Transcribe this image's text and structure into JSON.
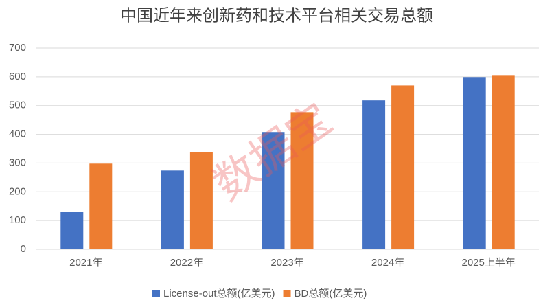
{
  "chart_data": {
    "type": "bar",
    "title": "中国近年来创新药和技术平台相关交易总额",
    "watermark": "数据宝",
    "categories": [
      "2021年",
      "2022年",
      "2023年",
      "2024年",
      "2025上半年"
    ],
    "series": [
      {
        "name": "License-out总额(亿美元)",
        "color": "#4472c4",
        "values": [
          131,
          274,
          408,
          518,
          599
        ]
      },
      {
        "name": "BD总额(亿美元)",
        "color": "#ed7d31",
        "values": [
          298,
          339,
          477,
          570,
          606
        ]
      }
    ],
    "ylim": [
      0,
      700
    ],
    "yticks": [
      0,
      100,
      200,
      300,
      400,
      500,
      600,
      700
    ],
    "grid": true,
    "legend": "bottom"
  }
}
